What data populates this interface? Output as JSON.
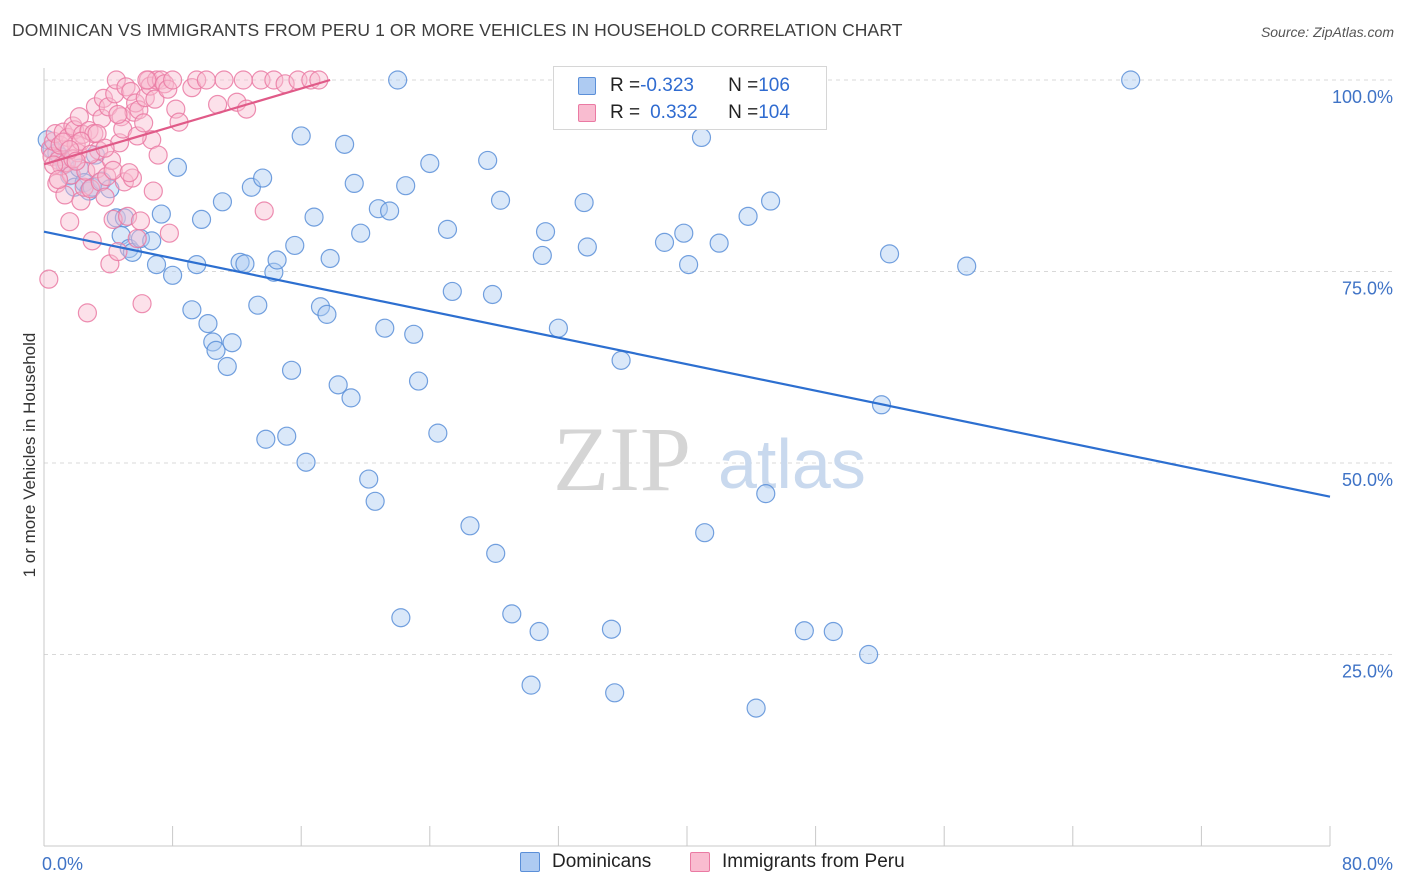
{
  "title": "DOMINICAN VS IMMIGRANTS FROM PERU 1 OR MORE VEHICLES IN HOUSEHOLD CORRELATION CHART",
  "source": "Source: ZipAtlas.com",
  "watermark": {
    "zip": "ZIP",
    "atlas": "atlas"
  },
  "legend_stats": [
    {
      "r_label": "R = ",
      "r_value": "-0.323",
      "n_label": "N = ",
      "n_value": "106"
    },
    {
      "r_label": "R = ",
      "r_value": "0.332",
      "n_label": "N = ",
      "n_value": "104"
    }
  ],
  "colors": {
    "dominicans_fill": "#aecbf2",
    "dominicans_stroke": "#5b8fd8",
    "dominicans_line": "#2d6fd0",
    "peru_fill": "#f9bcd0",
    "peru_stroke": "#ea7aa3",
    "peru_line": "#e05a88",
    "tick_text": "#3f73c6",
    "grid": "#d8d8d8"
  },
  "chart_data": {
    "type": "scatter",
    "title": "DOMINICAN VS IMMIGRANTS FROM PERU 1 OR MORE VEHICLES IN HOUSEHOLD CORRELATION CHART",
    "xlabel": "",
    "ylabel": "1 or more Vehicles in Household",
    "xlim": [
      0,
      80
    ],
    "ylim": [
      0,
      100
    ],
    "x_tick_labels": [
      "0.0%",
      "80.0%"
    ],
    "y_ticks": [
      25,
      50,
      75,
      100
    ],
    "y_tick_labels": [
      "25.0%",
      "50.0%",
      "75.0%",
      "100.0%"
    ],
    "grid": "horizontal dashed",
    "legend_placement": "bottom-center",
    "series": [
      {
        "name": "Dominicans",
        "r": -0.323,
        "n": 106,
        "trend": {
          "x": [
            0,
            80
          ],
          "y": [
            80.2,
            45.6
          ]
        },
        "points": [
          [
            0.2,
            92.2
          ],
          [
            0.5,
            91.0
          ],
          [
            0.8,
            90.5
          ],
          [
            1.0,
            90.0
          ],
          [
            1.3,
            89.0
          ],
          [
            1.6,
            87.5
          ],
          [
            1.9,
            86.0
          ],
          [
            2.2,
            88.5
          ],
          [
            2.5,
            86.6
          ],
          [
            2.8,
            85.5
          ],
          [
            3.0,
            86.0
          ],
          [
            3.2,
            90.2
          ],
          [
            3.6,
            86.8
          ],
          [
            4.1,
            85.8
          ],
          [
            4.5,
            82.0
          ],
          [
            4.8,
            79.7
          ],
          [
            5.0,
            82.0
          ],
          [
            5.3,
            78.0
          ],
          [
            5.5,
            77.5
          ],
          [
            6.0,
            79.3
          ],
          [
            6.7,
            79.0
          ],
          [
            7.0,
            75.9
          ],
          [
            7.3,
            82.5
          ],
          [
            8.0,
            74.5
          ],
          [
            8.3,
            88.6
          ],
          [
            9.2,
            70.0
          ],
          [
            9.5,
            75.9
          ],
          [
            9.8,
            81.8
          ],
          [
            10.2,
            68.2
          ],
          [
            10.5,
            65.8
          ],
          [
            10.7,
            64.7
          ],
          [
            11.1,
            84.1
          ],
          [
            11.4,
            62.6
          ],
          [
            11.7,
            65.7
          ],
          [
            12.2,
            76.2
          ],
          [
            12.5,
            76.0
          ],
          [
            12.9,
            86.0
          ],
          [
            13.3,
            70.6
          ],
          [
            13.6,
            87.2
          ],
          [
            13.8,
            53.1
          ],
          [
            14.3,
            74.9
          ],
          [
            14.5,
            76.5
          ],
          [
            15.1,
            53.5
          ],
          [
            15.4,
            62.1
          ],
          [
            15.6,
            78.4
          ],
          [
            16.0,
            92.7
          ],
          [
            16.3,
            50.1
          ],
          [
            16.8,
            82.1
          ],
          [
            17.2,
            70.4
          ],
          [
            17.6,
            69.4
          ],
          [
            17.8,
            76.7
          ],
          [
            18.3,
            60.2
          ],
          [
            18.7,
            91.6
          ],
          [
            19.1,
            58.5
          ],
          [
            19.3,
            86.5
          ],
          [
            19.7,
            80.0
          ],
          [
            20.2,
            47.9
          ],
          [
            20.6,
            45.0
          ],
          [
            20.8,
            83.2
          ],
          [
            21.2,
            67.6
          ],
          [
            21.5,
            82.9
          ],
          [
            22.0,
            100.0
          ],
          [
            22.2,
            29.8
          ],
          [
            22.5,
            86.2
          ],
          [
            23.0,
            66.8
          ],
          [
            23.3,
            60.7
          ],
          [
            24.0,
            89.1
          ],
          [
            24.5,
            53.9
          ],
          [
            25.1,
            80.5
          ],
          [
            25.4,
            72.4
          ],
          [
            26.5,
            41.8
          ],
          [
            27.6,
            89.5
          ],
          [
            27.9,
            72.0
          ],
          [
            28.1,
            38.2
          ],
          [
            28.4,
            84.3
          ],
          [
            29.1,
            30.3
          ],
          [
            30.3,
            21.0
          ],
          [
            30.8,
            28.0
          ],
          [
            31.0,
            77.1
          ],
          [
            31.2,
            80.2
          ],
          [
            32.0,
            67.6
          ],
          [
            32.7,
            99.7
          ],
          [
            33.6,
            84.0
          ],
          [
            33.8,
            78.2
          ],
          [
            35.3,
            28.3
          ],
          [
            35.5,
            20.0
          ],
          [
            35.9,
            63.4
          ],
          [
            38.6,
            78.8
          ],
          [
            39.8,
            80.0
          ],
          [
            40.1,
            75.9
          ],
          [
            40.9,
            92.5
          ],
          [
            41.1,
            40.9
          ],
          [
            42.0,
            78.7
          ],
          [
            43.8,
            82.2
          ],
          [
            44.3,
            18.0
          ],
          [
            44.9,
            46.0
          ],
          [
            45.2,
            84.2
          ],
          [
            47.3,
            28.1
          ],
          [
            49.1,
            28.0
          ],
          [
            51.3,
            25.0
          ],
          [
            52.1,
            57.6
          ],
          [
            52.6,
            77.3
          ],
          [
            57.4,
            75.7
          ],
          [
            67.6,
            100.0
          ]
        ]
      },
      {
        "name": "Immigrants from Peru",
        "r": 0.332,
        "n": 104,
        "trend": {
          "x": [
            0,
            17.8
          ],
          "y": [
            89.0,
            100.0
          ]
        },
        "points": [
          [
            0.3,
            74.0
          ],
          [
            0.4,
            91.0
          ],
          [
            0.5,
            90.0
          ],
          [
            0.6,
            92.0
          ],
          [
            0.7,
            93.0
          ],
          [
            0.8,
            86.5
          ],
          [
            0.9,
            89.5
          ],
          [
            1.0,
            91.5
          ],
          [
            1.1,
            88.8
          ],
          [
            1.2,
            93.2
          ],
          [
            1.3,
            85.0
          ],
          [
            1.4,
            89.2
          ],
          [
            1.5,
            92.5
          ],
          [
            1.6,
            81.5
          ],
          [
            1.7,
            87.6
          ],
          [
            1.8,
            94.0
          ],
          [
            1.9,
            93.5
          ],
          [
            2.0,
            91.6
          ],
          [
            2.1,
            90.5
          ],
          [
            2.2,
            95.2
          ],
          [
            2.3,
            84.2
          ],
          [
            2.4,
            92.9
          ],
          [
            2.5,
            86.0
          ],
          [
            2.6,
            88.1
          ],
          [
            2.7,
            69.6
          ],
          [
            2.8,
            93.4
          ],
          [
            2.9,
            85.8
          ],
          [
            3.0,
            79.0
          ],
          [
            3.1,
            93.0
          ],
          [
            3.2,
            96.5
          ],
          [
            3.3,
            88.4
          ],
          [
            3.4,
            90.8
          ],
          [
            3.5,
            86.7
          ],
          [
            3.6,
            95.0
          ],
          [
            3.7,
            97.6
          ],
          [
            3.8,
            84.7
          ],
          [
            3.9,
            87.4
          ],
          [
            4.0,
            96.5
          ],
          [
            4.1,
            76.0
          ],
          [
            4.2,
            89.5
          ],
          [
            4.3,
            81.8
          ],
          [
            4.4,
            98.2
          ],
          [
            4.5,
            100.0
          ],
          [
            4.6,
            77.6
          ],
          [
            4.7,
            91.8
          ],
          [
            4.8,
            95.2
          ],
          [
            4.9,
            93.6
          ],
          [
            5.0,
            86.7
          ],
          [
            5.1,
            99.1
          ],
          [
            5.2,
            82.2
          ],
          [
            5.4,
            98.5
          ],
          [
            5.5,
            87.2
          ],
          [
            5.6,
            95.8
          ],
          [
            5.7,
            97.0
          ],
          [
            5.8,
            79.3
          ],
          [
            5.9,
            96.1
          ],
          [
            6.0,
            81.6
          ],
          [
            6.1,
            70.8
          ],
          [
            6.3,
            97.7
          ],
          [
            6.5,
            100.0
          ],
          [
            6.6,
            99.2
          ],
          [
            6.7,
            92.2
          ],
          [
            6.8,
            85.5
          ],
          [
            6.9,
            97.5
          ],
          [
            7.0,
            100.0
          ],
          [
            7.1,
            90.2
          ],
          [
            7.3,
            100.0
          ],
          [
            7.5,
            99.5
          ],
          [
            7.7,
            98.8
          ],
          [
            7.8,
            80.0
          ],
          [
            8.0,
            100.0
          ],
          [
            8.2,
            96.2
          ],
          [
            8.4,
            94.5
          ],
          [
            9.2,
            99.0
          ],
          [
            9.5,
            100.0
          ],
          [
            10.1,
            100.0
          ],
          [
            10.8,
            96.8
          ],
          [
            11.2,
            100.0
          ],
          [
            12.0,
            97.1
          ],
          [
            12.4,
            100.0
          ],
          [
            12.6,
            96.2
          ],
          [
            13.5,
            100.0
          ],
          [
            13.7,
            82.9
          ],
          [
            14.3,
            100.0
          ],
          [
            15.0,
            99.5
          ],
          [
            15.8,
            100.0
          ],
          [
            16.6,
            100.0
          ],
          [
            17.1,
            100.0
          ],
          [
            0.6,
            88.9
          ],
          [
            1.2,
            91.9
          ],
          [
            1.8,
            89.7
          ],
          [
            2.3,
            92.0
          ],
          [
            2.9,
            90.3
          ],
          [
            3.3,
            93.0
          ],
          [
            3.8,
            91.1
          ],
          [
            4.3,
            88.2
          ],
          [
            4.6,
            95.5
          ],
          [
            5.3,
            87.9
          ],
          [
            5.8,
            92.7
          ],
          [
            6.2,
            94.4
          ],
          [
            6.4,
            100.0
          ],
          [
            0.9,
            87.0
          ],
          [
            1.6,
            90.9
          ],
          [
            2.0,
            89.4
          ]
        ]
      }
    ]
  },
  "bottom_legend": [
    "Dominicans",
    "Immigrants from Peru"
  ]
}
